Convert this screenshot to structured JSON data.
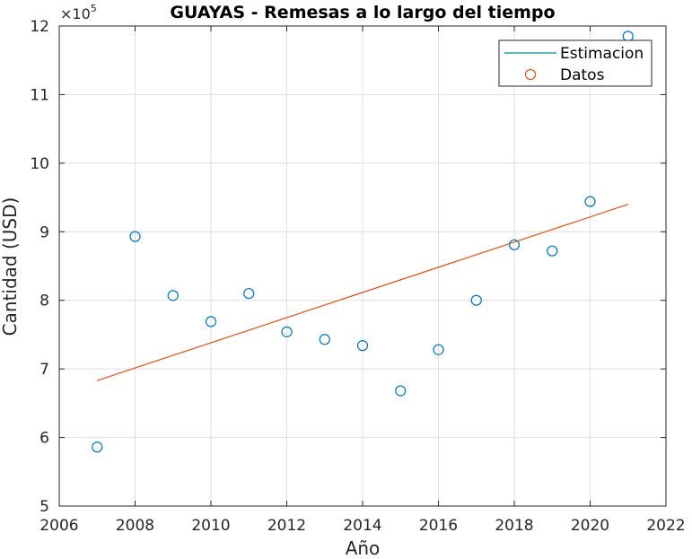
{
  "chart_data": {
    "type": "scatter",
    "title": "GUAYAS - Remesas a lo largo del tiempo",
    "xlabel": "Año",
    "ylabel": "Cantidad (USD)",
    "xlim": [
      2006,
      2022
    ],
    "ylim": [
      5,
      12
    ],
    "y_multiplier": {
      "base": "×10",
      "exponent": "5"
    },
    "xticks": [
      "2006",
      "2008",
      "2010",
      "2012",
      "2014",
      "2016",
      "2018",
      "2020",
      "2022"
    ],
    "yticks": [
      "5",
      "6",
      "7",
      "8",
      "9",
      "10",
      "11",
      "12"
    ],
    "grid": true,
    "legend_position": "top-right",
    "series": [
      {
        "name": "Estimacion",
        "kind": "line",
        "color": "#d95319",
        "legend_color": "#008b8b",
        "x": [
          2007,
          2021
        ],
        "y": [
          6.83,
          9.4
        ]
      },
      {
        "name": "Datos",
        "kind": "markers",
        "color": "#0072bd",
        "legend_color": "#d95319",
        "x": [
          2007,
          2008,
          2009,
          2010,
          2011,
          2012,
          2013,
          2014,
          2015,
          2016,
          2017,
          2018,
          2019,
          2020,
          2021
        ],
        "y": [
          5.86,
          8.93,
          8.07,
          7.69,
          8.1,
          7.54,
          7.43,
          7.34,
          6.68,
          7.28,
          8.0,
          8.81,
          8.72,
          9.44,
          11.85
        ]
      }
    ]
  }
}
